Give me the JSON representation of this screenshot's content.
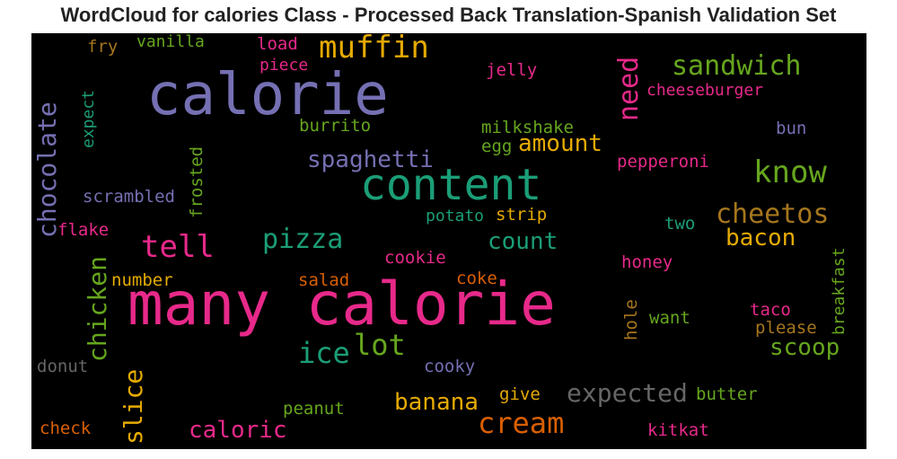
{
  "title": "WordCloud for calories Class - Processed Back Translation-Spanish Validation Set",
  "colors": {
    "purple": "#7570b3",
    "green": "#1b9e77",
    "pink": "#e7298a",
    "lime": "#66a61e",
    "gold": "#e6ab02",
    "orange": "#d95f02",
    "brown": "#a6761d",
    "gray": "#666666"
  },
  "words": {
    "many_calorie": "many calorie",
    "calorie": "calorie",
    "content": "content",
    "muffin": "muffin",
    "sandwich": "sandwich",
    "know": "know",
    "cheetos": "cheetos",
    "tell": "tell",
    "pizza": "pizza",
    "chocolate": "chocolate",
    "need": "need",
    "spaghetti": "spaghetti",
    "amount": "amount",
    "count": "count",
    "bacon": "bacon",
    "chicken": "chicken",
    "lot": "lot",
    "ice": "ice",
    "scoop": "scoop",
    "cream": "cream",
    "banana": "banana",
    "expected": "expected",
    "caloric": "caloric",
    "slice": "slice",
    "fry": "fry",
    "vanilla": "vanilla",
    "load": "load",
    "piece": "piece",
    "jelly": "jelly",
    "cheeseburger": "cheeseburger",
    "expect": "expect",
    "burrito": "burrito",
    "milkshake": "milkshake",
    "egg": "egg",
    "bun": "bun",
    "frosted": "frosted",
    "pepperoni": "pepperoni",
    "scrambled": "scrambled",
    "flake": "flake",
    "potato": "potato",
    "strip": "strip",
    "two": "two",
    "breakfast": "breakfast",
    "number": "number",
    "salad": "salad",
    "cookie": "cookie",
    "coke": "coke",
    "honey": "honey",
    "hole": "hole",
    "want": "want",
    "taco": "taco",
    "please": "please",
    "donut": "donut",
    "cooky": "cooky",
    "give": "give",
    "butter": "butter",
    "peanut": "peanut",
    "check": "check",
    "kitkat": "kitkat"
  }
}
